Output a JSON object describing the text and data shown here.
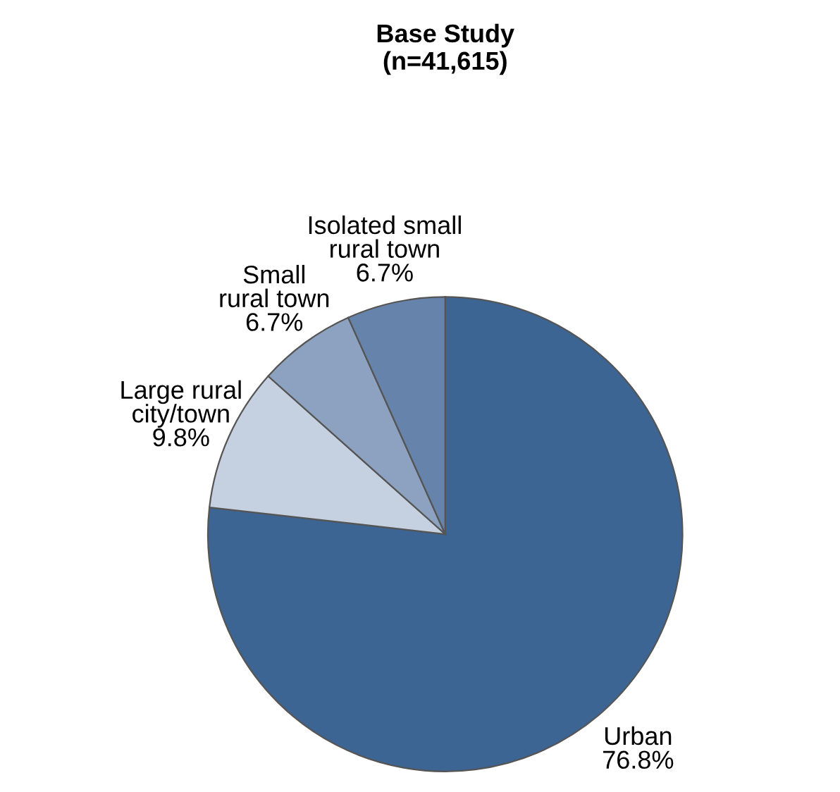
{
  "chart_data": {
    "type": "pie",
    "title": "Base Study\n(n=41,615)",
    "categories": [
      "Urban",
      "Large rural\ncity/town",
      "Small\nrural town",
      "Isolated small\nrural town"
    ],
    "values": [
      76.8,
      9.8,
      6.7,
      6.7
    ],
    "value_labels": [
      "76.8%",
      "9.8%",
      "6.7%",
      "6.7%"
    ],
    "colors": [
      "#3d6594",
      "#c5d0e0",
      "#8da2c0",
      "#6683ab"
    ],
    "legend": false
  }
}
